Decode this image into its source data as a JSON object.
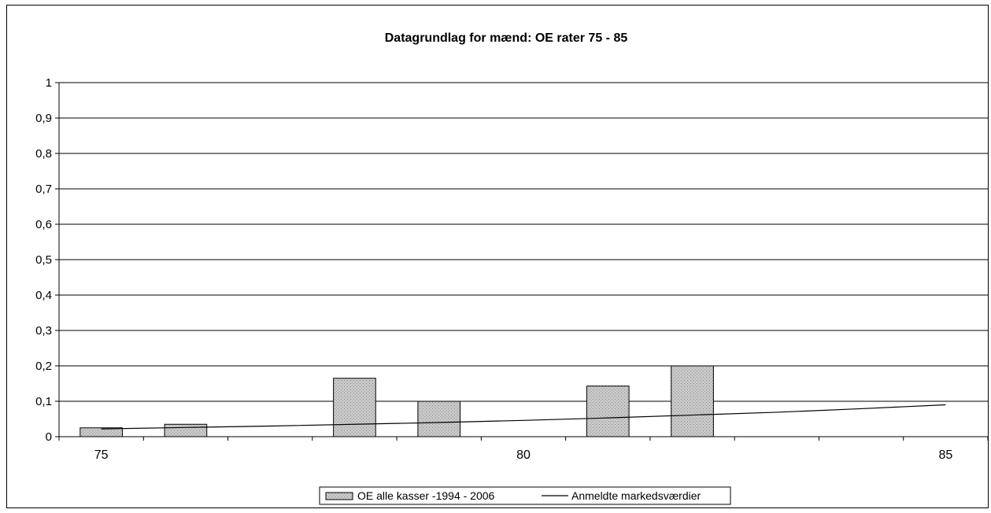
{
  "chart_data": {
    "type": "bar",
    "title": "Datagrundlag for mænd: OE rater 75 - 85",
    "xlabel": "",
    "ylabel": "",
    "xlim": [
      74.5,
      85.5
    ],
    "ylim": [
      0,
      1
    ],
    "y_ticks": [
      "0",
      "0,1",
      "0,2",
      "0,3",
      "0,4",
      "0,5",
      "0,6",
      "0,7",
      "0,8",
      "0,9",
      "1"
    ],
    "x_ticks": [
      "75",
      "80",
      "85"
    ],
    "grid": true,
    "legend_position": "bottom",
    "series": [
      {
        "name": "OE alle kasser -1994 - 2006",
        "type": "bar",
        "x": [
          75,
          76,
          77,
          78,
          79,
          80,
          81,
          82,
          83,
          84,
          85
        ],
        "values": [
          0.025,
          0.035,
          0,
          0.165,
          0.1,
          0,
          0.143,
          0.2,
          0,
          0,
          0
        ],
        "color": "#c8c8c8"
      },
      {
        "name": "Anmeldte markedsværdier",
        "type": "line",
        "x": [
          75,
          76,
          77,
          78,
          79,
          80,
          81,
          82,
          83,
          84,
          85
        ],
        "values": [
          0.022,
          0.026,
          0.03,
          0.035,
          0.04,
          0.046,
          0.053,
          0.061,
          0.069,
          0.079,
          0.09
        ],
        "color": "#000000"
      }
    ]
  }
}
